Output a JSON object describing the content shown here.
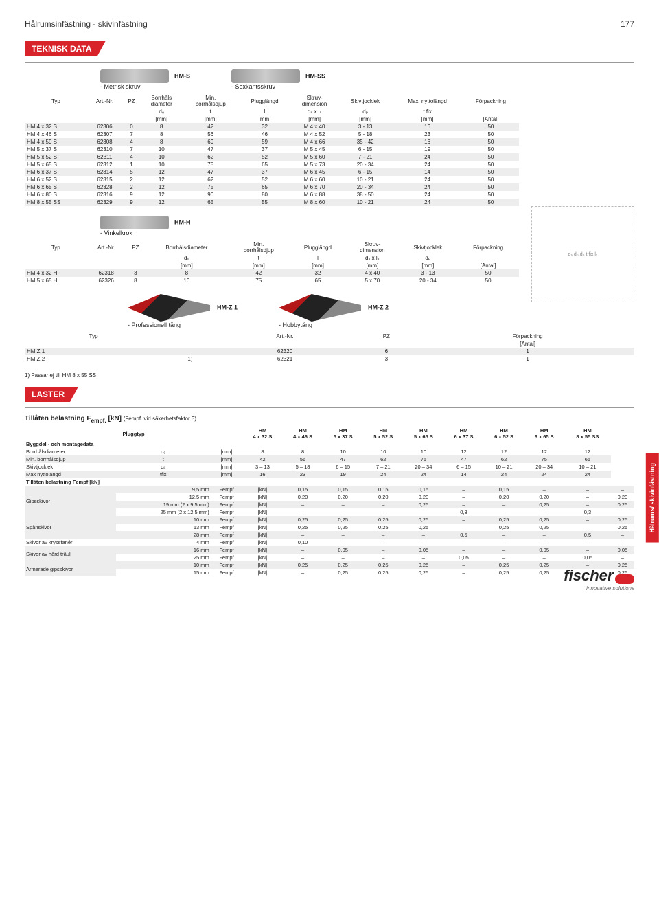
{
  "header": {
    "title": "Hålrumsinfästning - skivinfästning",
    "page": "177"
  },
  "sections": {
    "tech": "TEKNISK DATA",
    "laster": "LASTER"
  },
  "side_tab": "Hålrums/\nskivinfästning",
  "products": {
    "hms": {
      "code": "HM-S",
      "sub": "- Metrisk skruv"
    },
    "hmss": {
      "code": "HM-SS",
      "sub": "- Sexkantsskruv"
    },
    "hmh": {
      "code": "HM-H",
      "sub": "- Vinkelkrok"
    },
    "hmz1": {
      "code": "HM-Z 1",
      "sub": "- Professionell tång"
    },
    "hmz2": {
      "code": "HM-Z 2",
      "sub": "- Hobbytång"
    }
  },
  "t1": {
    "head_top": [
      "Typ",
      "Art.-Nr.",
      "PZ",
      "Borrhåls\ndiameter",
      "Min.\nborrhålsdjup",
      "Plugglängd",
      "Skruv-\ndimension",
      "Skivtjocklek",
      "Max. nyttolängd",
      "Förpackning"
    ],
    "head_sym": [
      "",
      "",
      "",
      "d₀",
      "t",
      "l",
      "dₛ x lₛ",
      "dₚ",
      "t fix",
      ""
    ],
    "head_unit": [
      "",
      "",
      "",
      "[mm]",
      "[mm]",
      "[mm]",
      "[mm]",
      "[mm]",
      "[mm]",
      "[Antal]"
    ],
    "rows": [
      [
        "HM 4 x 32 S",
        "62306",
        "0",
        "8",
        "42",
        "32",
        "M 4 x 40",
        "3 - 13",
        "16",
        "50"
      ],
      [
        "HM 4 x 46 S",
        "62307",
        "7",
        "8",
        "56",
        "46",
        "M 4 x 52",
        "5 - 18",
        "23",
        "50"
      ],
      [
        "HM 4 x 59 S",
        "62308",
        "4",
        "8",
        "69",
        "59",
        "M 4 x 66",
        "35 - 42",
        "16",
        "50"
      ],
      [
        "HM 5 x 37 S",
        "62310",
        "7",
        "10",
        "47",
        "37",
        "M 5 x 45",
        "6 - 15",
        "19",
        "50"
      ],
      [
        "HM 5 x 52 S",
        "62311",
        "4",
        "10",
        "62",
        "52",
        "M 5 x 60",
        "7 - 21",
        "24",
        "50"
      ],
      [
        "HM 5 x 65 S",
        "62312",
        "1",
        "10",
        "75",
        "65",
        "M 5 x 73",
        "20 - 34",
        "24",
        "50"
      ],
      [
        "HM 6 x 37 S",
        "62314",
        "5",
        "12",
        "47",
        "37",
        "M 6 x 45",
        "6 - 15",
        "14",
        "50"
      ],
      [
        "HM 6 x 52 S",
        "62315",
        "2",
        "12",
        "62",
        "52",
        "M 6 x 60",
        "10 - 21",
        "24",
        "50"
      ],
      [
        "HM 6 x 65 S",
        "62328",
        "2",
        "12",
        "75",
        "65",
        "M 6 x 70",
        "20 - 34",
        "24",
        "50"
      ],
      [
        "HM 6 x 80 S",
        "62316",
        "9",
        "12",
        "90",
        "80",
        "M 6 x 88",
        "38 - 50",
        "24",
        "50"
      ],
      [
        "HM 8 x 55 SS",
        "62329",
        "9",
        "12",
        "65",
        "55",
        "M 8 x 60",
        "10 - 21",
        "24",
        "50"
      ]
    ]
  },
  "t2": {
    "head_top": [
      "Typ",
      "Art.-Nr.",
      "PZ",
      "Borrhålsdiameter",
      "Min.\nborrhålsdjup",
      "Plugglängd",
      "Skruv-\ndimension",
      "Skivtjocklek",
      "Förpackning"
    ],
    "head_sym": [
      "",
      "",
      "",
      "d₀",
      "t",
      "l",
      "dₛ x lₛ",
      "dₚ",
      ""
    ],
    "head_unit": [
      "",
      "",
      "",
      "[mm]",
      "[mm]",
      "[mm]",
      "[mm]",
      "[mm]",
      "[Antal]"
    ],
    "rows": [
      [
        "HM 4 x 32 H",
        "62318",
        "3",
        "8",
        "42",
        "32",
        "4 x 40",
        "3 - 13",
        "50"
      ],
      [
        "HM 5 x 65 H",
        "62326",
        "8",
        "10",
        "75",
        "65",
        "5 x 70",
        "20 - 34",
        "50"
      ]
    ]
  },
  "t3": {
    "head_top": [
      "Typ",
      "",
      "Art.-Nr.",
      "PZ",
      "Förpackning"
    ],
    "head_unit": [
      "",
      "",
      "",
      "",
      "[Antal]"
    ],
    "rows": [
      [
        "HM Z 1",
        "",
        "62320",
        "6",
        "1"
      ],
      [
        "HM Z 2",
        "1)",
        "62321",
        "3",
        "1"
      ]
    ],
    "note": "1) Passar ej till HM 8 x 55 SS"
  },
  "laster": {
    "title": "Tillåten belastning F",
    "title_sub": "empf.",
    "title_unit": "[kN]",
    "title_note": "(Fempf. vid säkerhetsfaktor 3)",
    "row_pluggtyp": "Pluggtyp",
    "cols": [
      "HM\n4 x 32 S",
      "HM\n4 x 46 S",
      "HM\n5 x 37 S",
      "HM\n5 x 52 S",
      "HM\n5 x 65 S",
      "HM\n6 x 37 S",
      "HM\n6 x 52 S",
      "HM\n6 x 65 S",
      "HM\n8 x 55 SS"
    ],
    "sec1": "Byggdel - och montagedata",
    "rows1": [
      [
        "Borrhålsdiameter",
        "d₀",
        "[mm]",
        "8",
        "8",
        "10",
        "10",
        "10",
        "12",
        "12",
        "12",
        "12"
      ],
      [
        "Min. borrhålsdjup",
        "t",
        "[mm]",
        "42",
        "56",
        "47",
        "62",
        "75",
        "47",
        "62",
        "75",
        "65"
      ],
      [
        "Skivtjocklek",
        "dₚ",
        "[mm]",
        "3 – 13",
        "5 – 18",
        "6 – 15",
        "7 – 21",
        "20 – 34",
        "6 – 15",
        "10 – 21",
        "20 – 34",
        "10 – 21"
      ],
      [
        "Max nyttolängd",
        "tfix",
        "[mm]",
        "16",
        "23",
        "19",
        "24",
        "24",
        "14",
        "24",
        "24",
        "24"
      ]
    ],
    "sec2": "Tillåten belastning Fempf [kN]",
    "groups": [
      {
        "label": "Gipsskivor",
        "rows": [
          [
            "9,5 mm",
            "Fempf",
            "[kN]",
            "0,15",
            "0,15",
            "0,15",
            "0,15",
            "–",
            "0,15",
            "–",
            "–",
            "–"
          ],
          [
            "12,5 mm",
            "Fempf",
            "[kN]",
            "0,20",
            "0,20",
            "0,20",
            "0,20",
            "–",
            "0,20",
            "0,20",
            "–",
            "0,20"
          ],
          [
            "19 mm (2 x 9,5 mm)",
            "Fempf",
            "[kN]",
            "–",
            "–",
            "–",
            "0,25",
            "–",
            "–",
            "0,25",
            "–",
            "0,25"
          ],
          [
            "25 mm (2 x 12,5 mm)",
            "Fempf",
            "[kN]",
            "–",
            "–",
            "–",
            "",
            "0,3",
            "–",
            "–",
            "0,3",
            ""
          ]
        ]
      },
      {
        "label": "Spånskivor",
        "rows": [
          [
            "10 mm",
            "Fempf",
            "[kN]",
            "0,25",
            "0,25",
            "0,25",
            "0,25",
            "–",
            "0,25",
            "0,25",
            "–",
            "0,25"
          ],
          [
            "13 mm",
            "Fempf",
            "[kN]",
            "0,25",
            "0,25",
            "0,25",
            "0,25",
            "–",
            "0,25",
            "0,25",
            "–",
            "0,25"
          ],
          [
            "28 mm",
            "Fempf",
            "[kN]",
            "–",
            "–",
            "–",
            "–",
            "0,5",
            "–",
            "–",
            "0,5",
            "–"
          ]
        ]
      },
      {
        "label": "Skivor av kryssfanér",
        "rows": [
          [
            "4 mm",
            "Fempf",
            "[kN]",
            "0,10",
            "–",
            "–",
            "–",
            "–",
            "–",
            "–",
            "–",
            "–"
          ]
        ]
      },
      {
        "label": "Skivor av hård träull",
        "rows": [
          [
            "16 mm",
            "Fempf",
            "[kN]",
            "–",
            "0,05",
            "–",
            "0,05",
            "–",
            "–",
            "0,05",
            "–",
            "0,05"
          ],
          [
            "25 mm",
            "Fempf",
            "[kN]",
            "–",
            "–",
            "–",
            "–",
            "0,05",
            "–",
            "–",
            "0,05",
            "–"
          ]
        ]
      },
      {
        "label": "Armerade gipsskivor",
        "rows": [
          [
            "10 mm",
            "Fempf",
            "[kN]",
            "0,25",
            "0,25",
            "0,25",
            "0,25",
            "–",
            "0,25",
            "0,25",
            "–",
            "0,25"
          ],
          [
            "15 mm",
            "Fempf",
            "[kN]",
            "–",
            "0,25",
            "0,25",
            "0,25",
            "–",
            "0,25",
            "0,25",
            "–",
            "0,25"
          ]
        ]
      }
    ]
  },
  "logo": {
    "brand": "fischer",
    "tag": "innovative solutions"
  },
  "diagram_labels": {
    "ds": "dₛ",
    "d0": "d₀",
    "dp": "dₚ",
    "tfix": "t fix",
    "ls": "lₛ"
  }
}
